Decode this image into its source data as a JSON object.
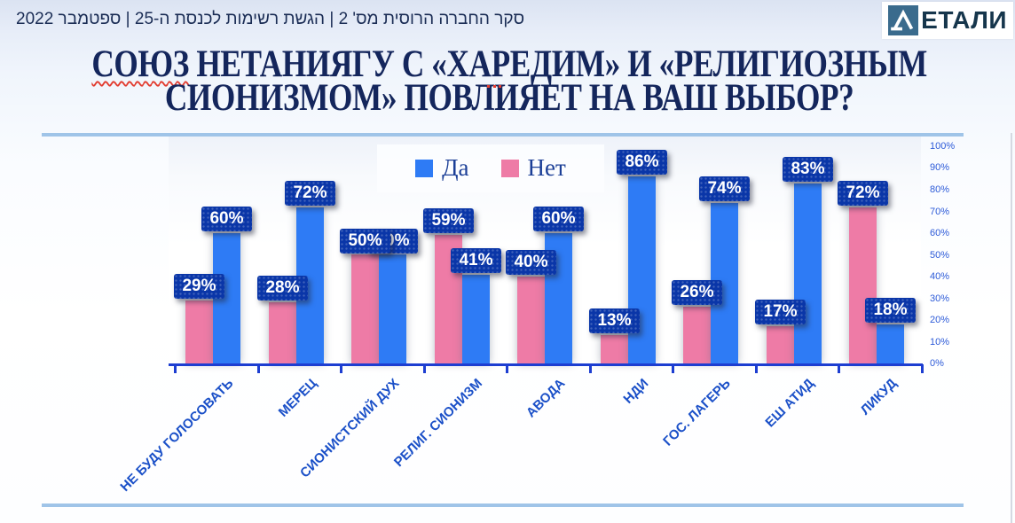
{
  "header": {
    "survey_line": "סקר החברה הרוסית מס' 2 | הגשת רשימות לכנסת ה-25 | ספטמבר 2022",
    "logo_text_visible": "ЕТАЛИ"
  },
  "title": {
    "word_underlined": "СОЮЗ",
    "line1_rest": "НЕТАНИЯГУ С «ХАРЕДИМ» И «РЕЛИГИОЗНЫМ",
    "line2": "СИОНИЗМОМ» ПОВЛИЯЕТ НА ВАШ ВЫБОР?"
  },
  "colors": {
    "yes_bar": "#2e7bf5",
    "no_bar": "#ee7ba6",
    "value_plate": "#0a36a8",
    "axis": "#1d3ed1",
    "category_label": "#1b50c8",
    "y_tick_label": "#2d5bd8",
    "title_text": "#14265c",
    "divider": "#9fc4e8"
  },
  "chart_data": {
    "type": "bar",
    "title": "СОЮЗ НЕТАНИЯГУ С «ХАРЕДИМ» И «РЕЛИГИОЗНЫМ СИОНИЗМОМ» ПОВЛИЯЕТ НА ВАШ ВЫБОР?",
    "categories": [
      "НЕ БУДУ ГОЛОСОВАТЬ",
      "МЕРЕЦ",
      "СИОНИСТСКИЙ ДУХ",
      "РЕЛИГ. СИОНИЗМ",
      "АВОДА",
      "НДИ",
      "ГОС. ЛАГЕРЬ",
      "ЕШ АТИД",
      "ЛИКУД"
    ],
    "series": [
      {
        "name": "Да",
        "values": [
          60,
          72,
          50,
          41,
          60,
          86,
          74,
          83,
          18
        ]
      },
      {
        "name": "Нет",
        "values": [
          29,
          28,
          50,
          59,
          40,
          13,
          26,
          17,
          72
        ]
      }
    ],
    "value_label_format": "{v}%",
    "y_ticks": [
      "0%",
      "10%",
      "20%",
      "30%",
      "40%",
      "50%",
      "60%",
      "70%",
      "80%",
      "90%",
      "100%"
    ],
    "ylim": [
      0,
      100
    ],
    "y_axis_side": "right",
    "legend_position": "top-center",
    "grid": false
  }
}
